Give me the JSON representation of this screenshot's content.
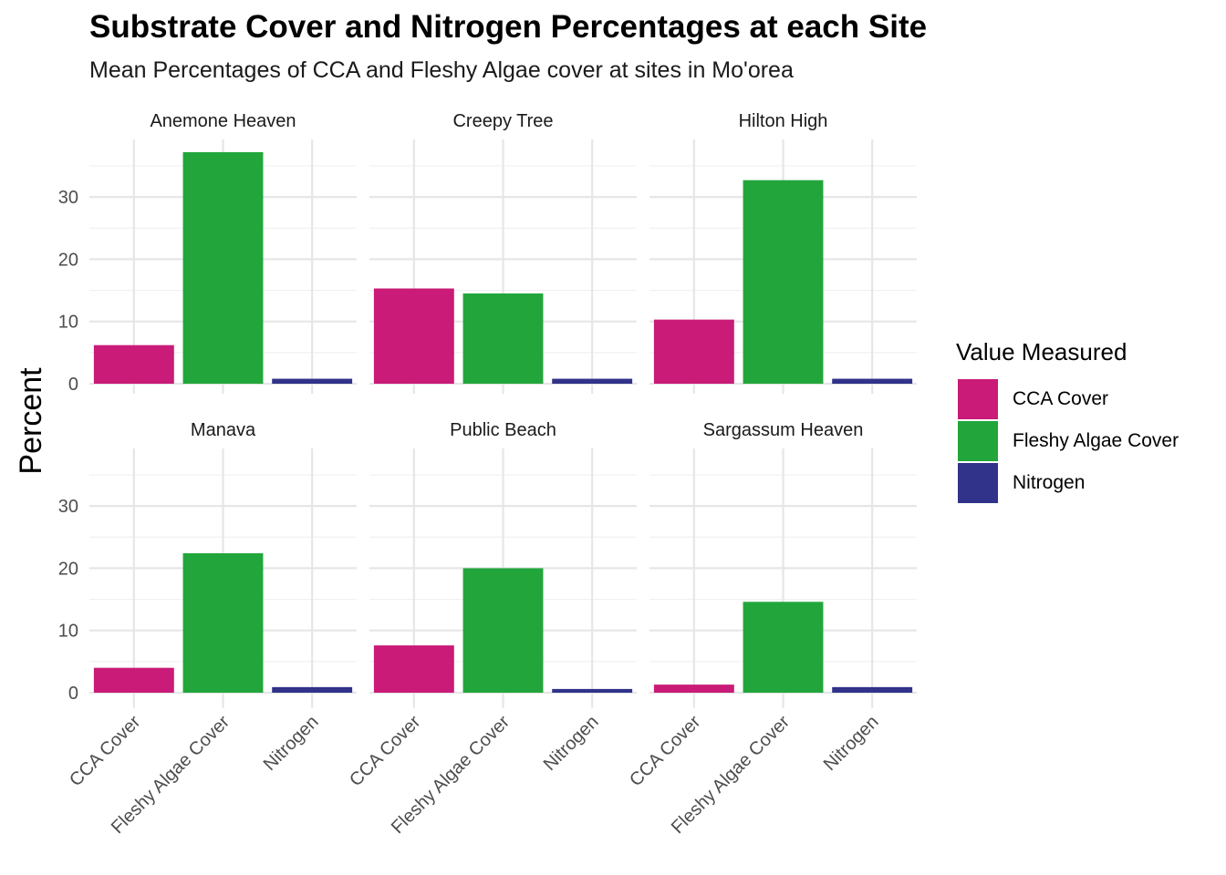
{
  "title": "Substrate Cover and Nitrogen Percentages at each Site",
  "subtitle": "Mean Percentages of CCA and Fleshy Algae cover at sites in Mo'orea",
  "legend": {
    "title": "Value Measured",
    "items": [
      {
        "label": "CCA Cover",
        "color": "#c91b77"
      },
      {
        "label": "Fleshy Algae Cover",
        "color": "#22a63c"
      },
      {
        "label": "Nitrogen",
        "color": "#313289"
      }
    ]
  },
  "chart_data": {
    "type": "bar",
    "title": "Substrate Cover and Nitrogen Percentages at each Site",
    "subtitle": "Mean Percentages of CCA and Fleshy Algae cover at sites in Mo'orea",
    "xlabel": "",
    "ylabel": "Percent",
    "ylim": [
      0,
      38
    ],
    "yticks": [
      0,
      10,
      20,
      30
    ],
    "grid": true,
    "legend_position": "right",
    "categories": [
      "CCA Cover",
      "Fleshy Algae Cover",
      "Nitrogen"
    ],
    "colors": [
      "#c91b77",
      "#22a63c",
      "#313289"
    ],
    "facets": [
      {
        "name": "Anemone Heaven",
        "values": [
          6.2,
          37.2,
          0.8
        ]
      },
      {
        "name": "Creepy Tree",
        "values": [
          15.3,
          14.5,
          0.8
        ]
      },
      {
        "name": "Hilton High",
        "values": [
          10.3,
          32.7,
          0.8
        ]
      },
      {
        "name": "Manava",
        "values": [
          4.0,
          22.4,
          0.9
        ]
      },
      {
        "name": "Public Beach",
        "values": [
          7.6,
          20.0,
          0.6
        ]
      },
      {
        "name": "Sargassum Heaven",
        "values": [
          1.3,
          14.6,
          0.9
        ]
      }
    ]
  }
}
